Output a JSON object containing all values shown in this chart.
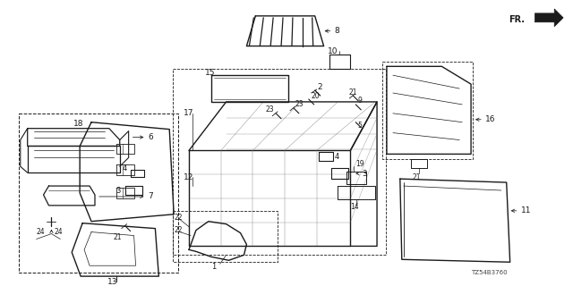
{
  "background_color": "#ffffff",
  "line_color": "#1a1a1a",
  "diagram_code": "TZ54B3760",
  "fr_text": "FR."
}
